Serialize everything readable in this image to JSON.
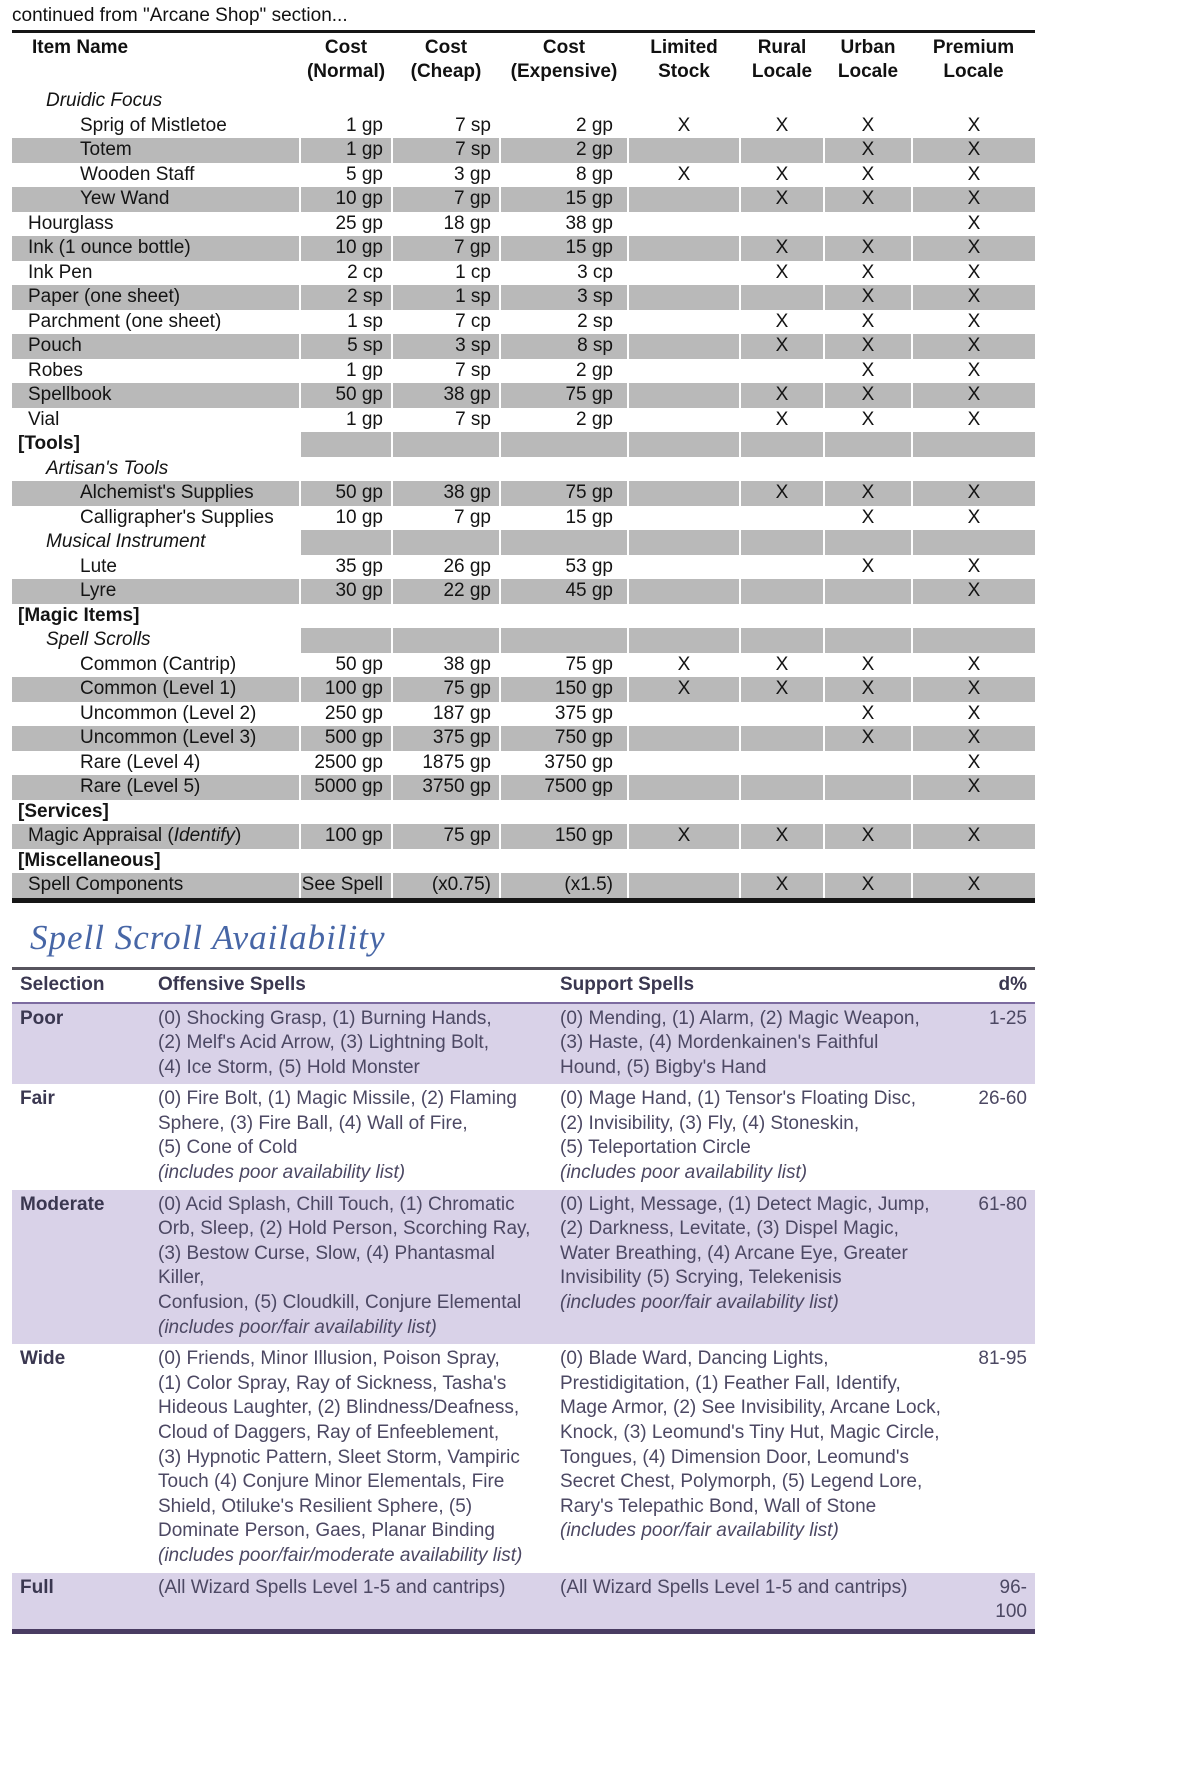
{
  "colors": {
    "shop_stripe_gray": "#b9b9b9",
    "avail_stripe_lavender": "#d9d2e8",
    "title_blue": "#4766a6",
    "shop_border_black": "#161616",
    "avail_border_purple": "#493c62",
    "avail_header_rule_purple": "#7c6ba0",
    "avail_text": "#4c4863"
  },
  "page": {
    "continued_note": "continued from \"Arcane Shop\" section..."
  },
  "shop_table": {
    "headers": [
      "Item Name",
      "Cost (Normal)",
      "Cost (Cheap)",
      "Cost (Expensive)",
      "Limited Stock",
      "Rural Locale",
      "Urban Locale",
      "Premium Locale"
    ],
    "rows": [
      {
        "type": "subsection",
        "label": "Druidic Focus"
      },
      {
        "type": "item2",
        "label": "Sprig of Mistletoe",
        "normal": "1 gp",
        "cheap": "7 sp",
        "expensive": "2 gp",
        "limited": "X",
        "rural": "X",
        "urban": "X",
        "premium": "X"
      },
      {
        "type": "item2",
        "label": "Totem",
        "normal": "1 gp",
        "cheap": "7 sp",
        "expensive": "2 gp",
        "urban": "X",
        "premium": "X",
        "shaded": true
      },
      {
        "type": "item2",
        "label": "Wooden Staff",
        "normal": "5 gp",
        "cheap": "3 gp",
        "expensive": "8 gp",
        "limited": "X",
        "rural": "X",
        "urban": "X",
        "premium": "X"
      },
      {
        "type": "item2",
        "label": "Yew Wand",
        "normal": "10 gp",
        "cheap": "7 gp",
        "expensive": "15 gp",
        "rural": "X",
        "urban": "X",
        "premium": "X",
        "shaded": true
      },
      {
        "type": "item1",
        "label": "Hourglass",
        "normal": "25 gp",
        "cheap": "18 gp",
        "expensive": "38 gp",
        "premium": "X"
      },
      {
        "type": "item1",
        "label": "Ink (1 ounce bottle)",
        "normal": "10 gp",
        "cheap": "7 gp",
        "expensive": "15 gp",
        "rural": "X",
        "urban": "X",
        "premium": "X",
        "shaded": true
      },
      {
        "type": "item1",
        "label": "Ink Pen",
        "normal": "2 cp",
        "cheap": "1 cp",
        "expensive": "3 cp",
        "rural": "X",
        "urban": "X",
        "premium": "X"
      },
      {
        "type": "item1",
        "label": "Paper (one sheet)",
        "normal": "2 sp",
        "cheap": "1 sp",
        "expensive": "3 sp",
        "urban": "X",
        "premium": "X",
        "shaded": true
      },
      {
        "type": "item1",
        "label": "Parchment (one sheet)",
        "normal": "1 sp",
        "cheap": "7 cp",
        "expensive": "2 sp",
        "rural": "X",
        "urban": "X",
        "premium": "X"
      },
      {
        "type": "item1",
        "label": "Pouch",
        "normal": "5 sp",
        "cheap": "3 sp",
        "expensive": "8 sp",
        "rural": "X",
        "urban": "X",
        "premium": "X",
        "shaded": true
      },
      {
        "type": "item1",
        "label": "Robes",
        "normal": "1 gp",
        "cheap": "7 sp",
        "expensive": "2 gp",
        "urban": "X",
        "premium": "X"
      },
      {
        "type": "item1",
        "label": "Spellbook",
        "normal": "50 gp",
        "cheap": "38 gp",
        "expensive": "75 gp",
        "rural": "X",
        "urban": "X",
        "premium": "X",
        "shaded": true
      },
      {
        "type": "item1",
        "label": "Vial",
        "normal": "1 gp",
        "cheap": "7 sp",
        "expensive": "2 gp",
        "rural": "X",
        "urban": "X",
        "premium": "X"
      },
      {
        "type": "section",
        "label": "[Tools]",
        "shaded": true
      },
      {
        "type": "subsection",
        "label": "Artisan's Tools"
      },
      {
        "type": "item2",
        "label": "Alchemist's Supplies",
        "normal": "50 gp",
        "cheap": "38 gp",
        "expensive": "75 gp",
        "rural": "X",
        "urban": "X",
        "premium": "X",
        "shaded": true
      },
      {
        "type": "item2",
        "label": "Calligrapher's Supplies",
        "normal": "10 gp",
        "cheap": "7 gp",
        "expensive": "15 gp",
        "urban": "X",
        "premium": "X"
      },
      {
        "type": "subsection",
        "label": "Musical Instrument",
        "shaded": true
      },
      {
        "type": "item2",
        "label": "Lute",
        "normal": "35 gp",
        "cheap": "26 gp",
        "expensive": "53 gp",
        "urban": "X",
        "premium": "X"
      },
      {
        "type": "item2",
        "label": "Lyre",
        "normal": "30 gp",
        "cheap": "22 gp",
        "expensive": "45 gp",
        "premium": "X",
        "shaded": true
      },
      {
        "type": "section",
        "label": "[Magic Items]"
      },
      {
        "type": "subsection",
        "label": "Spell Scrolls",
        "shaded": true
      },
      {
        "type": "item2",
        "label": "Common (Cantrip)",
        "normal": "50 gp",
        "cheap": "38 gp",
        "expensive": "75 gp",
        "limited": "X",
        "rural": "X",
        "urban": "X",
        "premium": "X"
      },
      {
        "type": "item2",
        "label": "Common (Level 1)",
        "normal": "100 gp",
        "cheap": "75 gp",
        "expensive": "150 gp",
        "limited": "X",
        "rural": "X",
        "urban": "X",
        "premium": "X",
        "shaded": true
      },
      {
        "type": "item2",
        "label": "Uncommon (Level 2)",
        "normal": "250 gp",
        "cheap": "187 gp",
        "expensive": "375 gp",
        "urban": "X",
        "premium": "X"
      },
      {
        "type": "item2",
        "label": "Uncommon (Level 3)",
        "normal": "500 gp",
        "cheap": "375 gp",
        "expensive": "750 gp",
        "urban": "X",
        "premium": "X",
        "shaded": true
      },
      {
        "type": "item2",
        "label": "Rare (Level 4)",
        "normal": "2500 gp",
        "cheap": "1875 gp",
        "expensive": "3750 gp",
        "premium": "X"
      },
      {
        "type": "item2",
        "label": "Rare (Level 5)",
        "normal": "5000 gp",
        "cheap": "3750 gp",
        "expensive": "7500 gp",
        "premium": "X",
        "shaded": true
      },
      {
        "type": "section",
        "label": "[Services]"
      },
      {
        "type": "item1",
        "label_pre": "Magic Appraisal (",
        "label_italic": "Identify",
        "label_post": ")",
        "normal": "100 gp",
        "cheap": "75 gp",
        "expensive": "150 gp",
        "limited": "X",
        "rural": "X",
        "urban": "X",
        "premium": "X",
        "shaded": true
      },
      {
        "type": "section",
        "label": "[Miscellaneous]"
      },
      {
        "type": "item1",
        "label": "Spell Components",
        "normal": "See Spell",
        "cheap": "(x0.75)",
        "expensive": "(x1.5)",
        "rural": "X",
        "urban": "X",
        "premium": "X",
        "shaded": true
      }
    ]
  },
  "availability": {
    "title": "Spell Scroll Availability",
    "headers": [
      "Selection",
      "Offensive Spells",
      "Support Spells",
      "d%"
    ],
    "rows": [
      {
        "selection": "Poor",
        "shaded": true,
        "offensive": "(0) Shocking Grasp, (1) Burning Hands,\n(2) Melf's Acid Arrow, (3) Lightning Bolt,\n(4) Ice Storm, (5) Hold Monster",
        "support": "(0) Mending, (1) Alarm, (2) Magic Weapon,\n(3) Haste, (4) Mordenkainen's Faithful\nHound, (5) Bigby's Hand",
        "d": "1-25"
      },
      {
        "selection": "Fair",
        "offensive": "(0) Fire Bolt, (1) Magic Missile, (2) Flaming\nSphere, (3) Fire Ball, (4) Wall of Fire,\n(5) Cone of Cold",
        "offensive_note": "(includes poor availability list)",
        "support": "(0) Mage Hand, (1) Tensor's Floating Disc,\n(2) Invisibility, (3) Fly, (4) Stoneskin,\n(5) Teleportation Circle",
        "support_note": "(includes poor availability list)",
        "d": "26-60"
      },
      {
        "selection": "Moderate",
        "shaded": true,
        "offensive": "(0) Acid Splash, Chill Touch, (1) Chromatic\nOrb, Sleep, (2) Hold Person, Scorching Ray,\n(3) Bestow Curse, Slow, (4) Phantasmal Killer,\nConfusion, (5) Cloudkill, Conjure Elemental",
        "offensive_note": "(includes poor/fair availability list)",
        "support": "(0) Light, Message, (1) Detect Magic, Jump,\n(2) Darkness, Levitate, (3) Dispel Magic,\nWater Breathing, (4) Arcane Eye, Greater\nInvisibility (5) Scrying, Telekenisis",
        "support_note": "(includes poor/fair availability list)",
        "d": "61-80"
      },
      {
        "selection": "Wide",
        "offensive": "(0) Friends, Minor Illusion, Poison Spray,\n(1) Color Spray, Ray of Sickness, Tasha's\nHideous Laughter, (2) Blindness/Deafness,\nCloud of Daggers, Ray of Enfeeblement,\n(3) Hypnotic Pattern, Sleet Storm, Vampiric\nTouch (4) Conjure Minor Elementals, Fire\nShield, Otiluke's Resilient Sphere, (5)\nDominate Person, Gaes, Planar Binding",
        "offensive_note": "(includes poor/fair/moderate availability list)",
        "support": "(0) Blade Ward, Dancing Lights,\nPrestidigitation, (1) Feather Fall, Identify,\nMage Armor, (2) See Invisibility, Arcane Lock,\nKnock, (3) Leomund's Tiny Hut, Magic Circle,\nTongues, (4) Dimension Door, Leomund's\nSecret Chest, Polymorph, (5) Legend Lore,\nRary's Telepathic Bond, Wall of Stone",
        "support_note": "(includes poor/fair availability list)",
        "d": "81-95"
      },
      {
        "selection": "Full",
        "shaded": true,
        "offensive": "(All Wizard Spells Level 1-5 and cantrips)",
        "support": "(All Wizard Spells Level 1-5 and cantrips)",
        "d": "96-100"
      }
    ]
  }
}
